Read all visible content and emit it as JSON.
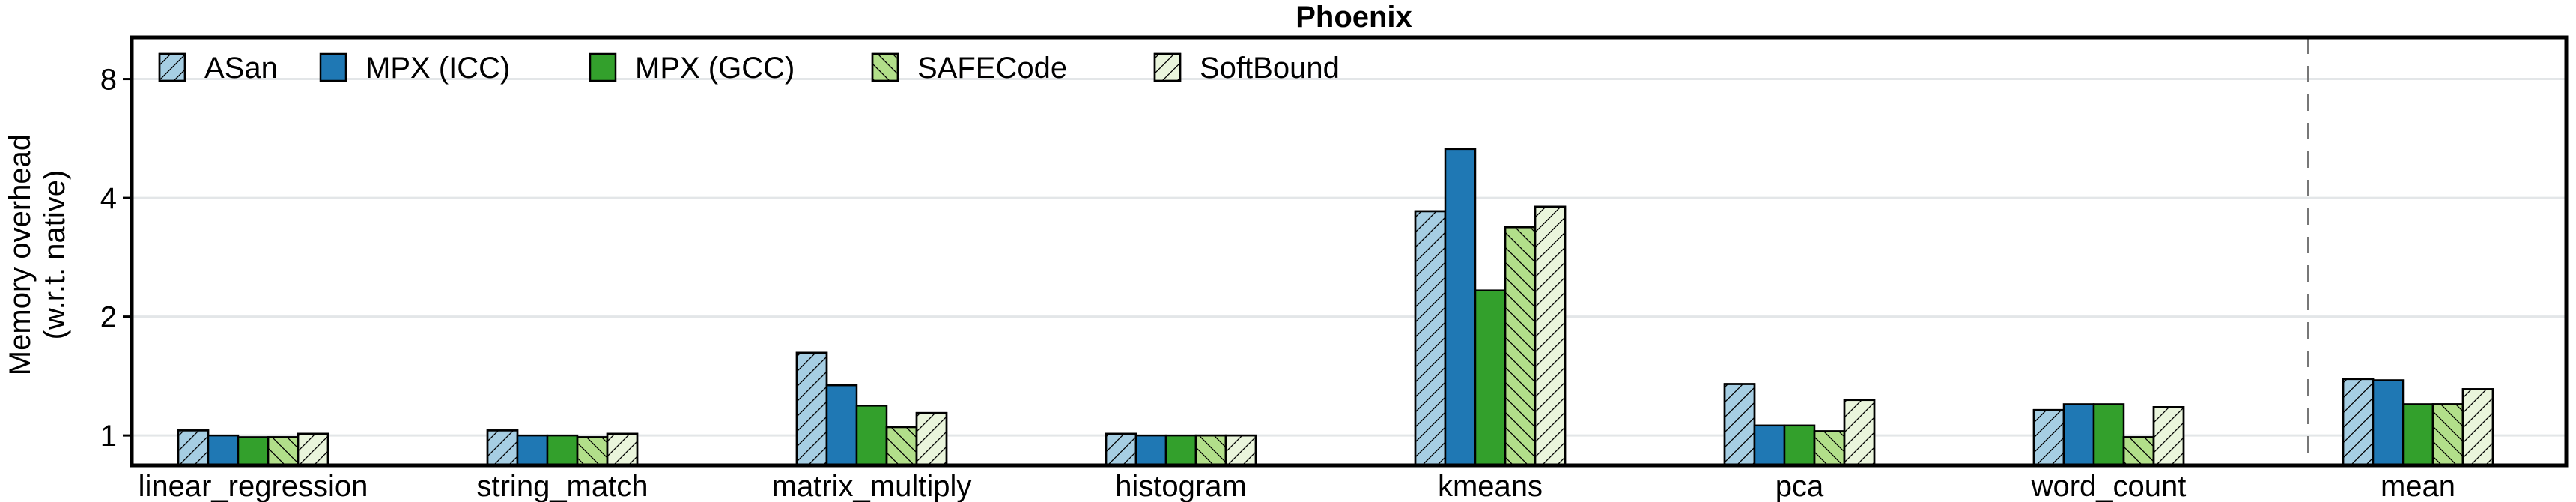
{
  "chart_data": {
    "type": "bar",
    "title": "Phoenix",
    "xlabel": "",
    "ylabel": [
      "Memory overhead",
      "(w.r.t. native)"
    ],
    "y_scale": "log2",
    "ylim": [
      0.84,
      10.2
    ],
    "yticks": [
      1,
      2,
      4,
      8
    ],
    "ytick_labels": [
      "1",
      "2",
      "4",
      "8"
    ],
    "grid": "horizontal",
    "legend_position": "top-left",
    "separator_before": "mean",
    "categories": [
      "linear_regression",
      "string_match",
      "matrix_multiply",
      "histogram",
      "kmeans",
      "pca",
      "word_count",
      "mean"
    ],
    "series": [
      {
        "name": "ASan",
        "color": "#a6cee3",
        "hatch": "/",
        "values": [
          1.03,
          1.03,
          1.62,
          1.01,
          3.7,
          1.35,
          1.16,
          1.39
        ]
      },
      {
        "name": "MPX (ICC)",
        "color": "#1f78b4",
        "hatch": "",
        "values": [
          1.0,
          1.0,
          1.34,
          1.0,
          5.32,
          1.06,
          1.2,
          1.38
        ]
      },
      {
        "name": "MPX (GCC)",
        "color": "#33a02c",
        "hatch": "",
        "values": [
          0.99,
          1.0,
          1.19,
          1.0,
          2.33,
          1.06,
          1.2,
          1.2
        ]
      },
      {
        "name": "SAFECode",
        "color": "#b2df8a",
        "hatch": "\\",
        "values": [
          0.99,
          0.99,
          1.05,
          1.0,
          3.37,
          1.025,
          0.99,
          1.2
        ]
      },
      {
        "name": "SoftBound",
        "color": "#eaf5dc",
        "hatch": "/",
        "values": [
          1.01,
          1.01,
          1.14,
          1.0,
          3.8,
          1.23,
          1.18,
          1.31
        ]
      }
    ]
  }
}
